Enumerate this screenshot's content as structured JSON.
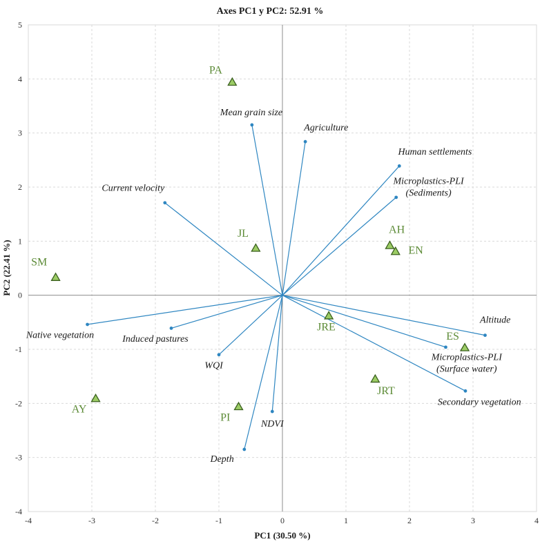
{
  "chart_data": {
    "type": "biplot",
    "title": "Axes PC1 y PC2: 52.91 %",
    "xlabel": "PC1 (30.50 %)",
    "ylabel": "PC2 (22.41 %)",
    "xlim": [
      -4,
      4
    ],
    "ylim": [
      -4,
      5
    ],
    "xticks": [
      -4,
      -3,
      -2,
      -1,
      0,
      1,
      2,
      3,
      4
    ],
    "yticks": [
      -4,
      -3,
      -2,
      -1,
      0,
      1,
      2,
      3,
      4,
      5
    ],
    "grid": true,
    "colors": {
      "vector": "#2e86c1",
      "point": "#9ccc65",
      "point_edge": "#3a5f1e",
      "site_label": "#5b8a35"
    },
    "variables": [
      {
        "name": "Mean grain size",
        "lines": [
          "Mean grain size"
        ],
        "x": -0.48,
        "y": 3.15,
        "anchor": "end",
        "lx": 0.0,
        "ly": 3.33
      },
      {
        "name": "Agriculture",
        "lines": [
          "Agriculture"
        ],
        "x": 0.36,
        "y": 2.84,
        "anchor": "start",
        "lx": 0.34,
        "ly": 3.05
      },
      {
        "name": "Human settlements",
        "lines": [
          "Human settlements"
        ],
        "x": 1.84,
        "y": 2.39,
        "anchor": "start",
        "lx": 1.82,
        "ly": 2.6
      },
      {
        "name": "Microplastics-PLI (Sediments)",
        "lines": [
          "Microplastics-PLI",
          "(Sediments)"
        ],
        "x": 1.79,
        "y": 1.81,
        "anchor": "middle",
        "lx": 2.3,
        "ly": 2.06
      },
      {
        "name": "Current velocity",
        "lines": [
          "Current velocity"
        ],
        "x": -1.85,
        "y": 1.71,
        "anchor": "middle",
        "lx": -2.35,
        "ly": 1.93
      },
      {
        "name": "Altitude",
        "lines": [
          "Altitude"
        ],
        "x": 3.19,
        "y": -0.74,
        "anchor": "middle",
        "lx": 3.35,
        "ly": -0.51
      },
      {
        "name": "Microplastics-PLI (Surface water)",
        "lines": [
          "Microplastics-PLI",
          "(Surface water)"
        ],
        "x": 2.57,
        "y": -0.96,
        "anchor": "middle",
        "lx": 2.9,
        "ly": -1.2
      },
      {
        "name": "Secondary vegetation",
        "lines": [
          "Secondary vegetation"
        ],
        "x": 2.88,
        "y": -1.77,
        "anchor": "middle",
        "lx": 3.1,
        "ly": -2.03
      },
      {
        "name": "Native vegetation",
        "lines": [
          "Native vegetation"
        ],
        "x": -3.07,
        "y": -0.54,
        "anchor": "middle",
        "lx": -3.5,
        "ly": -0.79
      },
      {
        "name": "Induced pastures",
        "lines": [
          "Induced pastures"
        ],
        "x": -1.75,
        "y": -0.61,
        "anchor": "middle",
        "lx": -2.0,
        "ly": -0.86
      },
      {
        "name": "WQI",
        "lines": [
          "WQI"
        ],
        "x": -1.0,
        "y": -1.1,
        "anchor": "middle",
        "lx": -1.08,
        "ly": -1.35
      },
      {
        "name": "NDVI",
        "lines": [
          "NDVI"
        ],
        "x": -0.16,
        "y": -2.15,
        "anchor": "middle",
        "lx": -0.16,
        "ly": -2.43
      },
      {
        "name": "Depth",
        "lines": [
          "Depth"
        ],
        "x": -0.6,
        "y": -2.85,
        "anchor": "middle",
        "lx": -0.95,
        "ly": -3.08
      }
    ],
    "sites": [
      {
        "name": "PA",
        "x": -0.79,
        "y": 3.94,
        "lx": -1.05,
        "ly": 4.1
      },
      {
        "name": "JL",
        "x": -0.42,
        "y": 0.87,
        "lx": -0.62,
        "ly": 1.08
      },
      {
        "name": "SM",
        "x": -3.57,
        "y": 0.33,
        "lx": -3.83,
        "ly": 0.55
      },
      {
        "name": "AH",
        "x": 1.69,
        "y": 0.92,
        "lx": 1.8,
        "ly": 1.15
      },
      {
        "name": "EN",
        "x": 1.78,
        "y": 0.81,
        "lx": 2.1,
        "ly": 0.77
      },
      {
        "name": "JRE",
        "x": 0.73,
        "y": -0.38,
        "lx": 0.69,
        "ly": -0.65
      },
      {
        "name": "ES",
        "x": 2.87,
        "y": -0.97,
        "lx": 2.68,
        "ly": -0.82
      },
      {
        "name": "JRT",
        "x": 1.46,
        "y": -1.55,
        "lx": 1.63,
        "ly": -1.83
      },
      {
        "name": "AY",
        "x": -2.94,
        "y": -1.91,
        "lx": -3.2,
        "ly": -2.17
      },
      {
        "name": "PI",
        "x": -0.69,
        "y": -2.06,
        "lx": -0.9,
        "ly": -2.32
      }
    ]
  }
}
